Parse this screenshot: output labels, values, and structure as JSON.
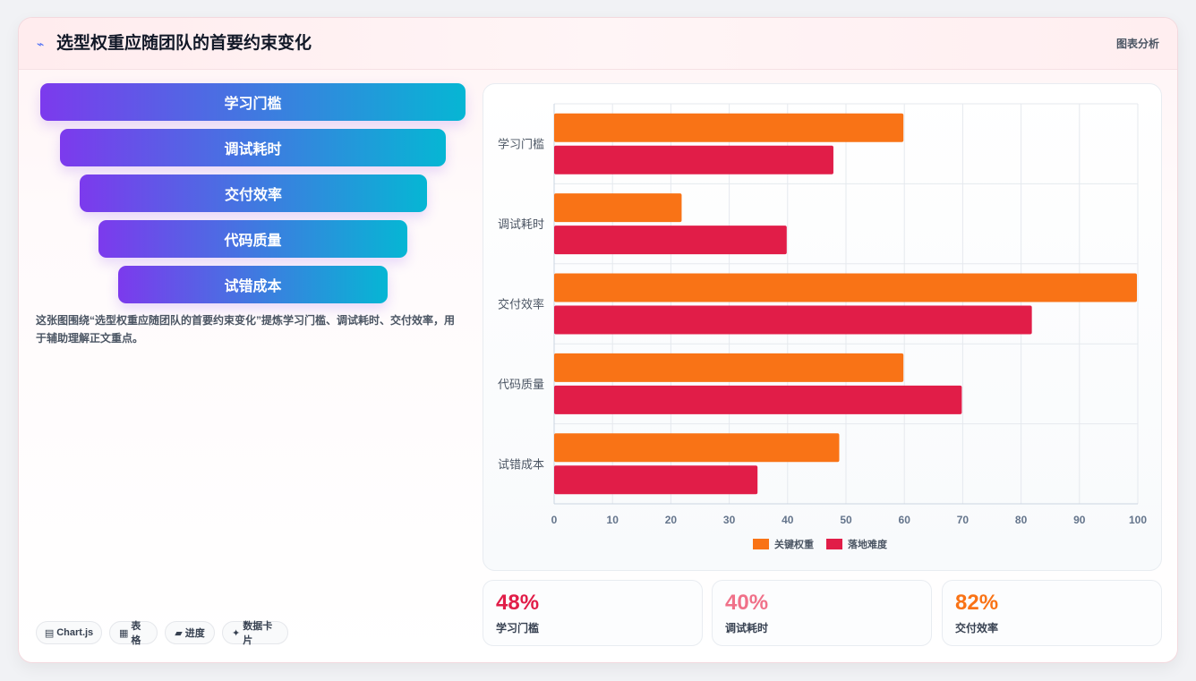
{
  "header": {
    "icon": "bolt-icon",
    "title": "选型权重应随团队的首要约束变化",
    "badge": "图表分析"
  },
  "funnel": {
    "steps": [
      "学习门槛",
      "调试耗时",
      "交付效率",
      "代码质量",
      "试错成本"
    ]
  },
  "description": "这张图围绕“选型权重应随团队的首要约束变化”提炼学习门槛、调试耗时、交付效率，用于辅助理解正文重点。",
  "chips": [
    {
      "icon": "chart-icon",
      "glyph": "▤",
      "label": "Chart.js"
    },
    {
      "icon": "table-icon",
      "glyph": "▦",
      "label": "表格"
    },
    {
      "icon": "progress-icon",
      "glyph": "▰",
      "label": "进度"
    },
    {
      "icon": "sparkle-icon",
      "glyph": "✦",
      "label": "数据卡片"
    }
  ],
  "stats": [
    {
      "value": "48%",
      "label": "学习门槛",
      "color": "#e11d48"
    },
    {
      "value": "40%",
      "label": "调试耗时",
      "color": "#f07189"
    },
    {
      "value": "82%",
      "label": "交付效率",
      "color": "#f97316"
    }
  ],
  "chart_data": {
    "type": "bar",
    "orientation": "horizontal",
    "categories": [
      "学习门槛",
      "调试耗时",
      "交付效率",
      "代码质量",
      "试错成本"
    ],
    "series": [
      {
        "name": "关键权重",
        "values": [
          60,
          22,
          100,
          60,
          49
        ],
        "color": "#f97316"
      },
      {
        "name": "落地难度",
        "values": [
          48,
          40,
          82,
          70,
          35
        ],
        "color": "#e11d48"
      }
    ],
    "xlim": [
      0,
      100
    ],
    "xticks": [
      0,
      10,
      20,
      30,
      40,
      50,
      60,
      70,
      80,
      90,
      100
    ],
    "grid": true,
    "legend": "bottom"
  }
}
